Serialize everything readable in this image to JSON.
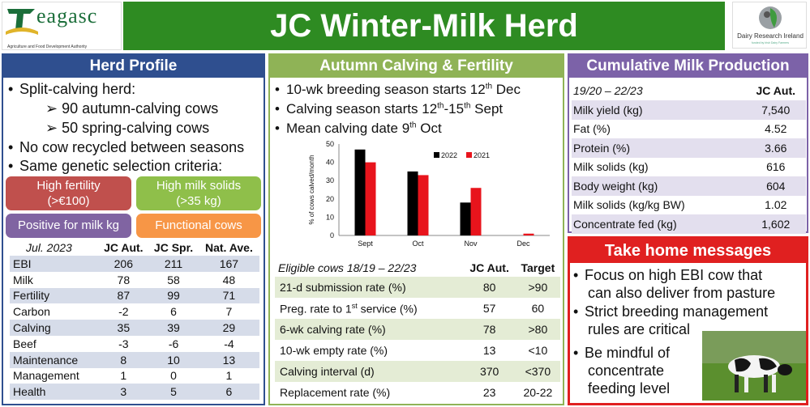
{
  "header": {
    "title": "JC Winter-Milk Herd",
    "logo_left_word": "eagasc",
    "logo_left_tagline": "Agriculture and Food Development Authority",
    "logo_right_text": "Dairy Research Ireland",
    "logo_right_sub": "funded by Irish Dairy Farmers"
  },
  "herd_profile": {
    "heading": "Herd Profile",
    "bullets": [
      "Split-calving herd:",
      "No cow recycled between seasons",
      "Same genetic selection criteria:"
    ],
    "sub_bullets": [
      "90 autumn-calving cows",
      "50 spring-calving cows"
    ],
    "tags": [
      {
        "line1": "High fertility",
        "line2": "(>€100)",
        "color": "#c0504d"
      },
      {
        "line1": "High milk solids",
        "line2": "(>35 kg)",
        "color": "#8fbf4a"
      },
      {
        "line1": "Positive for milk kg",
        "line2": "",
        "color": "#8064a2"
      },
      {
        "line1": "Functional cows",
        "line2": "",
        "color": "#f79646"
      }
    ],
    "table": {
      "headers": [
        "Jul. 2023",
        "JC Aut.",
        "JC Spr.",
        "Nat. Ave."
      ],
      "rows": [
        [
          "EBI",
          "206",
          "211",
          "167"
        ],
        [
          "Milk",
          "78",
          "58",
          "48"
        ],
        [
          "Fertility",
          "87",
          "99",
          "71"
        ],
        [
          "Carbon",
          "-2",
          "6",
          "7"
        ],
        [
          "Calving",
          "35",
          "39",
          "29"
        ],
        [
          "Beef",
          "-3",
          "-6",
          "-4"
        ],
        [
          "Maintenance",
          "8",
          "10",
          "13"
        ],
        [
          "Management",
          "1",
          "0",
          "1"
        ],
        [
          "Health",
          "3",
          "5",
          "6"
        ]
      ]
    }
  },
  "autumn": {
    "heading": "Autumn Calving & Fertility",
    "bullets": [
      {
        "pre": "10-wk breeding season starts 12",
        "sup": "th",
        "post": " Dec"
      },
      {
        "pre": "Calving season starts 12",
        "sup": "th",
        "post": "-15",
        "sup2": "th",
        "post2": " Sept"
      },
      {
        "pre": "Mean calving date 9",
        "sup": "th",
        "post": " Oct"
      }
    ],
    "table": {
      "headers": [
        "Eligible cows 18/19 – 22/23",
        "JC Aut.",
        "Target"
      ],
      "rows": [
        {
          "label": "21-d submission rate (%)",
          "aut": "80",
          "target": ">90"
        },
        {
          "label": "Preg. rate to 1",
          "sup": "st",
          "label_post": " service (%)",
          "aut": "57",
          "target": "60"
        },
        {
          "label": "6-wk calving rate (%)",
          "aut": "78",
          "target": ">80"
        },
        {
          "label": "10-wk empty rate (%)",
          "aut": "13",
          "target": "<10"
        },
        {
          "label": "Calving interval (d)",
          "aut": "370",
          "target": "<370"
        },
        {
          "label": "Replacement rate (%)",
          "aut": "23",
          "target": "20-22"
        }
      ]
    }
  },
  "chart_data": {
    "type": "bar",
    "categories": [
      "Sept",
      "Oct",
      "Nov",
      "Dec"
    ],
    "series": [
      {
        "name": "2022",
        "color": "#000000",
        "values": [
          47,
          35,
          18,
          0
        ]
      },
      {
        "name": "2021",
        "color": "#e8141c",
        "values": [
          40,
          33,
          26,
          1
        ]
      }
    ],
    "ylabel": "% of cows calved/month",
    "ylim": [
      0,
      50
    ],
    "yticks": [
      0,
      10,
      20,
      30,
      40,
      50
    ],
    "legend_position": "top-right"
  },
  "milk": {
    "heading": "Cumulative Milk Production",
    "headers": [
      "19/20 – 22/23",
      "JC Aut."
    ],
    "rows": [
      [
        "Milk yield (kg)",
        "7,540"
      ],
      [
        "Fat (%)",
        "4.52"
      ],
      [
        "Protein (%)",
        "3.66"
      ],
      [
        "Milk solids (kg)",
        "616"
      ],
      [
        "Body weight (kg)",
        "604"
      ],
      [
        "Milk solids (kg/kg BW)",
        "1.02"
      ],
      [
        "Concentrate fed (kg)",
        "1,602"
      ]
    ]
  },
  "take_home": {
    "heading": "Take home messages",
    "bullets": [
      [
        "Focus on high EBI cow that",
        "can also deliver from pasture"
      ],
      [
        "Strict breeding management",
        "rules are critical"
      ],
      [
        "Be mindful of",
        "concentrate",
        "feeding level"
      ]
    ]
  },
  "colors": {
    "title_green": "#2e8b22",
    "herd_blue": "#2f4f8f",
    "autumn_green": "#8fb356",
    "milk_purple": "#7c62a8",
    "take_red": "#e02020"
  }
}
